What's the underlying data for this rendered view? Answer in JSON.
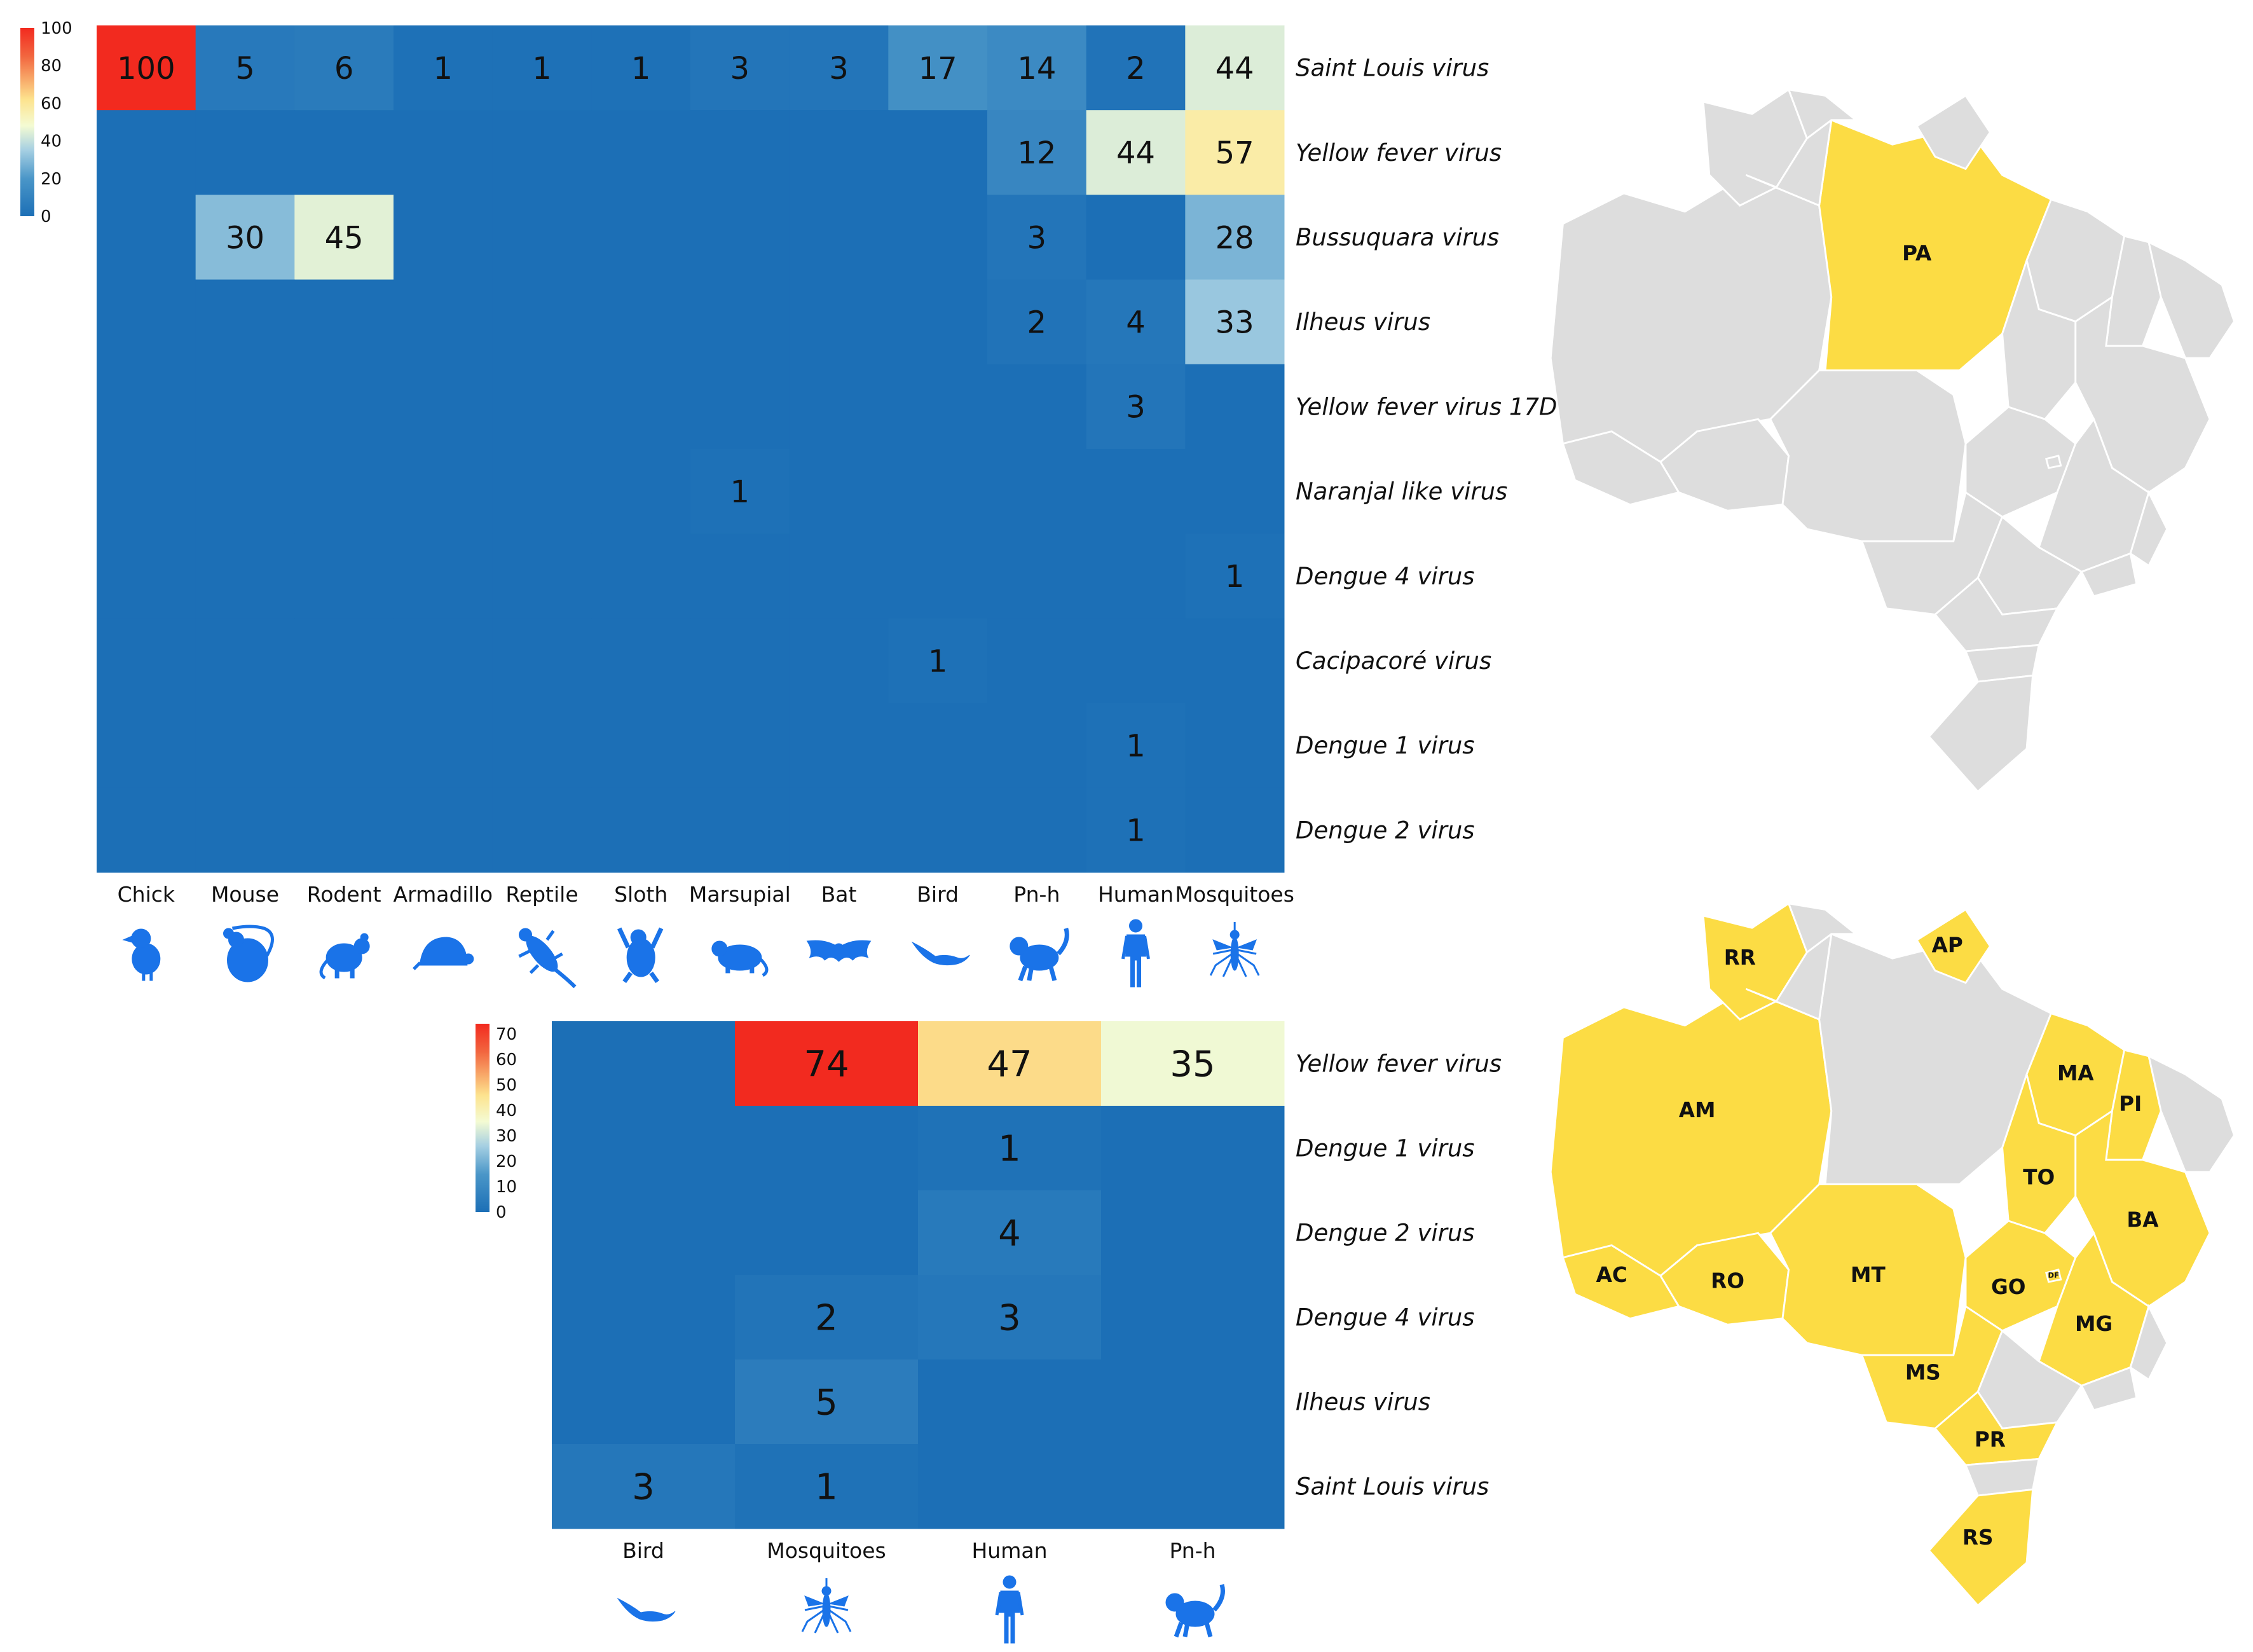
{
  "chart_data": [
    {
      "type": "heatmap",
      "rows": [
        "Saint Louis virus",
        "Yellow fever virus",
        "Bussuquara virus",
        "Ilheus virus",
        "Yellow fever virus 17D",
        "Naranjal like virus",
        "Dengue 4 virus",
        "Cacipacoré virus",
        "Dengue 1 virus",
        "Dengue 2 virus"
      ],
      "columns": [
        "Chick",
        "Mouse",
        "Rodent",
        "Armadillo",
        "Reptile",
        "Sloth",
        "Marsupial",
        "Bat",
        "Bird",
        "Pn-h",
        "Human",
        "Mosquitoes"
      ],
      "column_icons": [
        "chick-icon",
        "mouse-icon",
        "rodent-icon",
        "armadillo-icon",
        "reptile-icon",
        "sloth-icon",
        "marsupial-icon",
        "bat-icon",
        "bird-icon",
        "primate-icon",
        "human-icon",
        "mosquito-icon"
      ],
      "values": [
        [
          100,
          5,
          6,
          1,
          1,
          1,
          3,
          3,
          17,
          14,
          2,
          44
        ],
        [
          null,
          null,
          null,
          null,
          null,
          null,
          null,
          null,
          null,
          12,
          44,
          57
        ],
        [
          null,
          30,
          45,
          null,
          null,
          null,
          null,
          null,
          null,
          3,
          null,
          28
        ],
        [
          null,
          null,
          null,
          null,
          null,
          null,
          null,
          null,
          null,
          2,
          4,
          33
        ],
        [
          null,
          null,
          null,
          null,
          null,
          null,
          null,
          null,
          null,
          null,
          3,
          null
        ],
        [
          null,
          null,
          null,
          null,
          null,
          null,
          1,
          null,
          null,
          null,
          null,
          null
        ],
        [
          null,
          null,
          null,
          null,
          null,
          null,
          null,
          null,
          null,
          null,
          null,
          1
        ],
        [
          null,
          null,
          null,
          null,
          null,
          null,
          null,
          null,
          1,
          null,
          null,
          null
        ],
        [
          null,
          null,
          null,
          null,
          null,
          null,
          null,
          null,
          null,
          null,
          1,
          null
        ],
        [
          null,
          null,
          null,
          null,
          null,
          null,
          null,
          null,
          null,
          null,
          1,
          null
        ]
      ],
      "colorbar": {
        "min": 0,
        "max": 100,
        "ticks": [
          100,
          80,
          60,
          40,
          20,
          0
        ]
      },
      "colorscale": [
        "#1c6fb6",
        "#4a96c8",
        "#a5cfe2",
        "#f4fbd3",
        "#fde38e",
        "#f2663f",
        "#f22a1f"
      ],
      "map_highlighted_states": [
        "PA"
      ]
    },
    {
      "type": "heatmap",
      "rows": [
        "Yellow fever virus",
        "Dengue 1 virus",
        "Dengue 2 virus",
        "Dengue 4 virus",
        "Ilheus virus",
        "Saint Louis virus"
      ],
      "columns": [
        "Bird",
        "Mosquitoes",
        "Human",
        "Pn-h"
      ],
      "column_icons": [
        "bird-icon",
        "mosquito-icon",
        "human-icon",
        "primate-icon"
      ],
      "values": [
        [
          null,
          74,
          47,
          35
        ],
        [
          null,
          null,
          1,
          null
        ],
        [
          null,
          null,
          4,
          null
        ],
        [
          null,
          2,
          3,
          null
        ],
        [
          null,
          5,
          null,
          null
        ],
        [
          3,
          1,
          null,
          null
        ]
      ],
      "colorbar": {
        "min": 0,
        "max": 74,
        "ticks": [
          70,
          60,
          50,
          40,
          30,
          20,
          10,
          0
        ]
      },
      "colorscale": [
        "#1c6fb6",
        "#4a96c8",
        "#a5cfe2",
        "#f4fbd3",
        "#fde38e",
        "#f2663f",
        "#f22a1f"
      ],
      "map_highlighted_states": [
        "RR",
        "AP",
        "AM",
        "AC",
        "RO",
        "MA",
        "PI",
        "TO",
        "BA",
        "MT",
        "GO",
        "DF",
        "MS",
        "MG",
        "PR",
        "RS"
      ]
    }
  ],
  "colors": {
    "map_highlight": "#fcdc44",
    "map_base": "#dddddd",
    "icon": "#1a73e8"
  }
}
